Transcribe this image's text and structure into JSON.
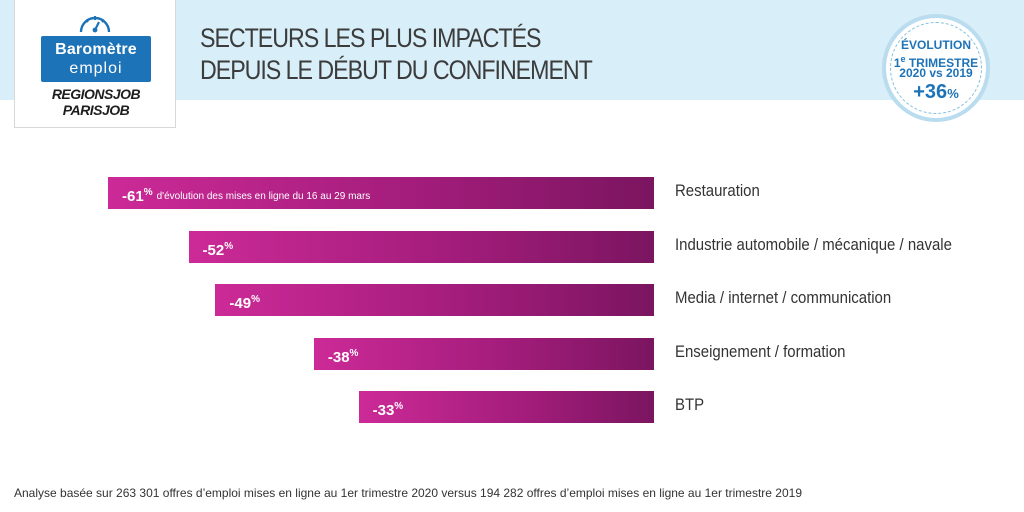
{
  "logo": {
    "line1": "Baromètre",
    "line2": "emploi",
    "brand1": "REGIONSJOB",
    "brand2": "PARISJOB"
  },
  "title": {
    "line1": "SECTEURS LES PLUS IMPACTÉS",
    "line2": "DEPUIS LE DÉBUT DU CONFINEMENT"
  },
  "badge": {
    "line1": "ÉVOLUTION",
    "line2_num": "1",
    "line2_sup": "e",
    "line2_rest": " TRIMESTRE",
    "line3": "2020 vs 2019",
    "value": "+36",
    "unit": "%"
  },
  "chart_data": {
    "type": "bar",
    "orientation": "horizontal",
    "title": "SECTEURS LES PLUS IMPACTÉS DEPUIS LE DÉBUT DU CONFINEMENT",
    "categories": [
      "Restauration",
      "Industrie automobile / mécanique / navale",
      "Media / internet / communication",
      "Enseignement / formation",
      "BTP"
    ],
    "values": [
      -61,
      -52,
      -49,
      -38,
      -33
    ],
    "value_labels": [
      "-61",
      "-52",
      "-49",
      "-38",
      "-33"
    ],
    "unit": "%",
    "annotation": "d'évolution des mises en ligne du 16 au 29 mars",
    "xlim": [
      -61,
      0
    ],
    "bar_color": "#a41d7c"
  },
  "footnote": "Analyse basée sur 263 301 offres d’emploi mises en ligne au 1er trimestre 2020 versus 194 282 offres d’emploi mises en ligne au 1er trimestre 2019",
  "colors": {
    "header_band": "#d8eef8",
    "brand_blue": "#1d73b8",
    "bar_light": "#cc2a97",
    "bar_dark": "#7b1560"
  }
}
